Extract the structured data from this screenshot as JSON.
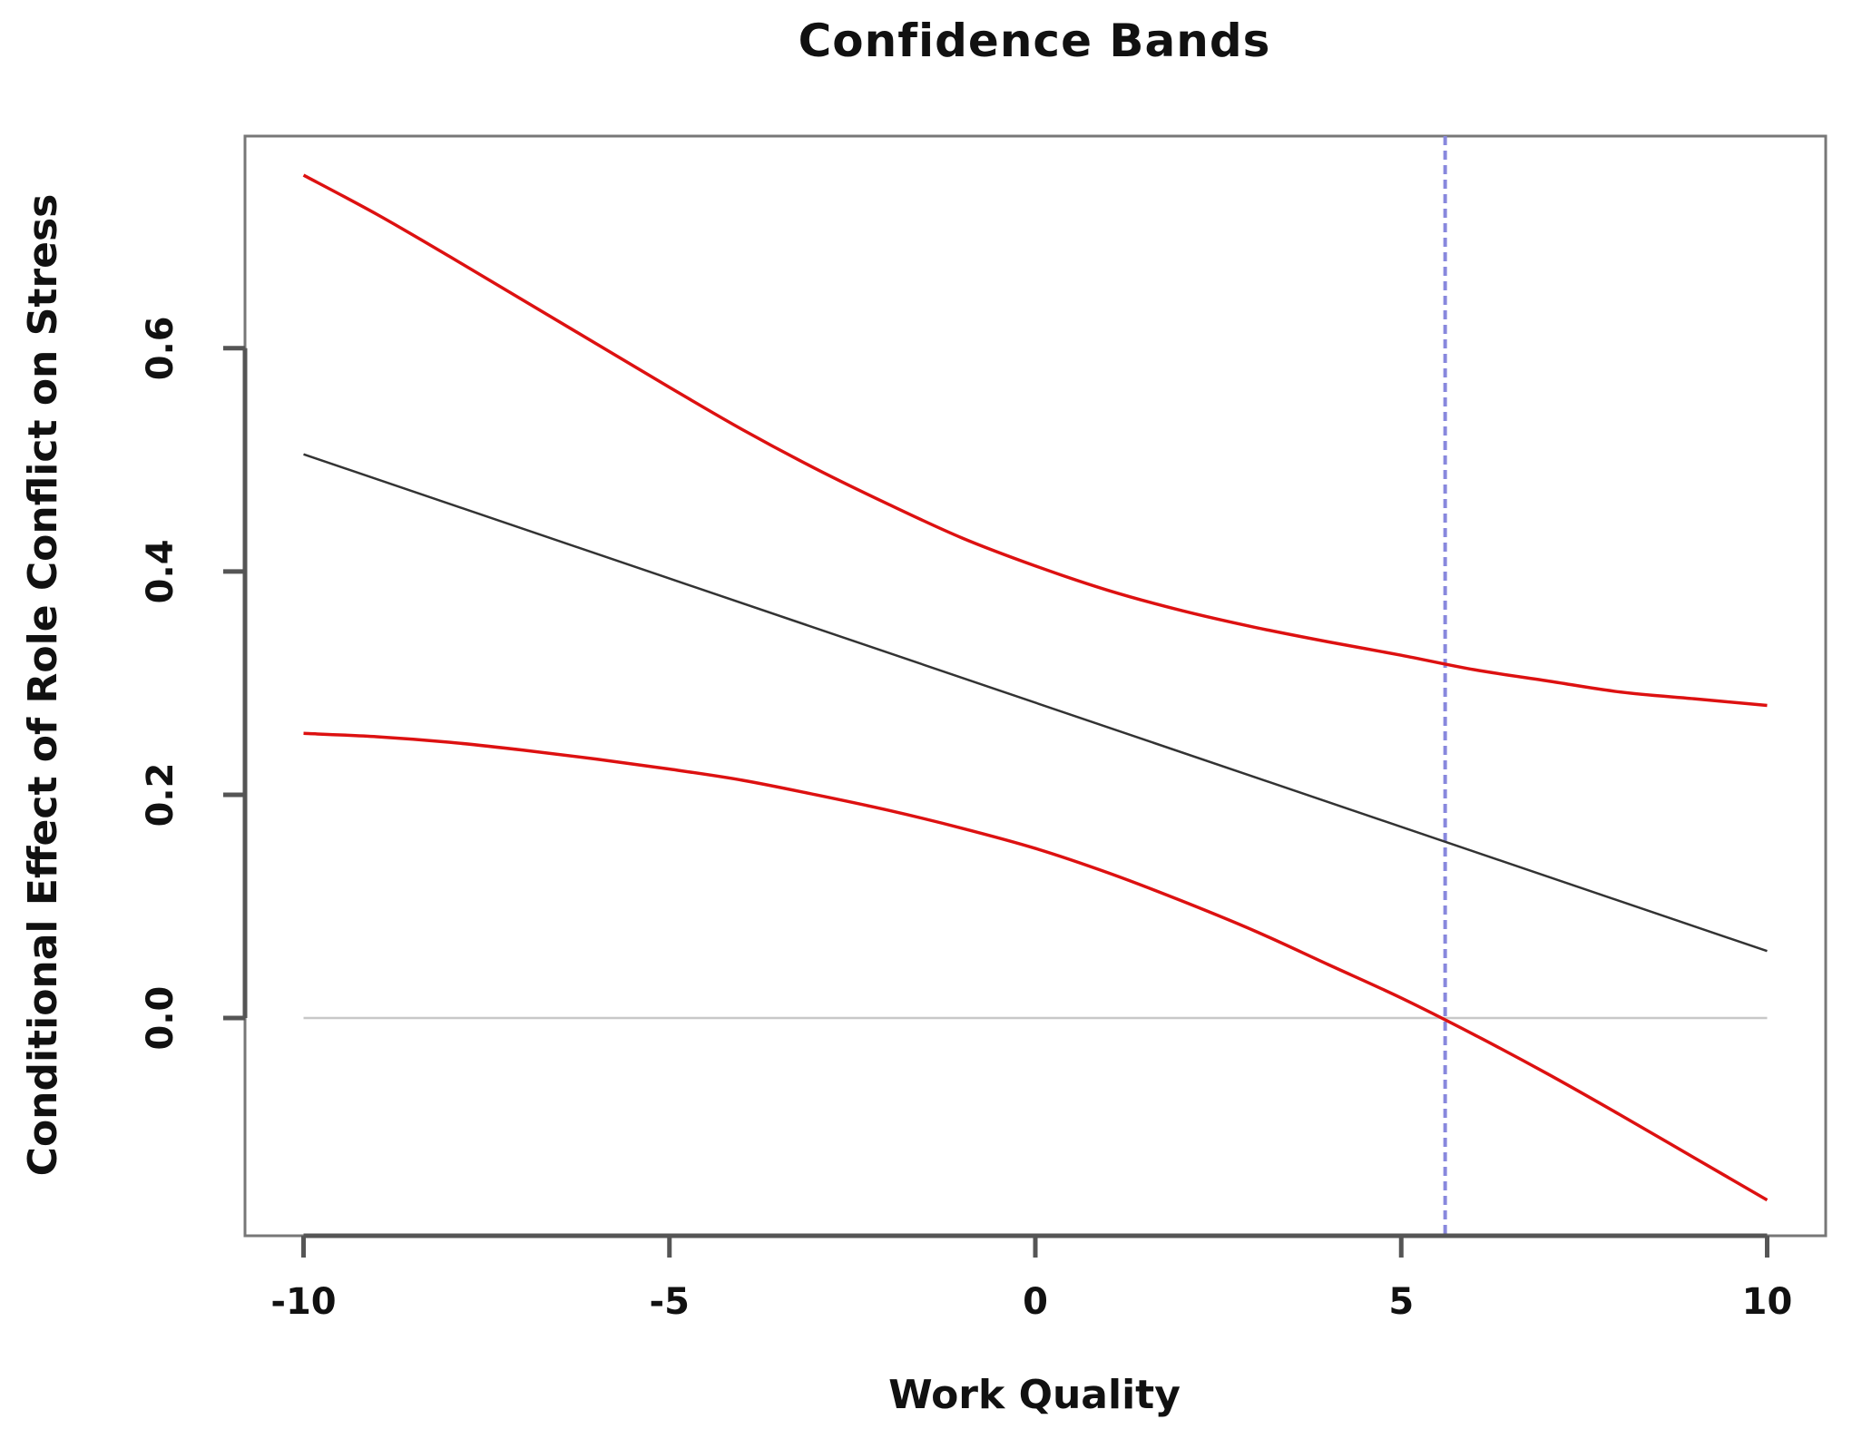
{
  "chart_data": {
    "type": "line",
    "title": "Confidence Bands",
    "xlabel": "Work Quality",
    "ylabel": "Conditional Effect of Role Conflict on Stress",
    "xlim": [
      -10.8,
      10.8
    ],
    "ylim": [
      -0.195,
      0.79
    ],
    "x_ticks": [
      -10,
      -5,
      0,
      5,
      10
    ],
    "x_tick_labels": [
      "-10",
      "-5",
      "0",
      "5",
      "10"
    ],
    "y_ticks": [
      0.0,
      0.2,
      0.4,
      0.6
    ],
    "y_tick_labels": [
      "0.0",
      "0.2",
      "0.4",
      "0.6"
    ],
    "grid": false,
    "series": [
      {
        "role": "estimate",
        "color": "#333333",
        "x": [
          -10,
          10
        ],
        "y": [
          0.505,
          0.06
        ]
      },
      {
        "role": "upper",
        "color": "#dd1111",
        "x": [
          -10,
          -9,
          -8,
          -7,
          -6,
          -5,
          -4,
          -3,
          -2,
          -1,
          0,
          1,
          2,
          3,
          4,
          5,
          6,
          7,
          8,
          9,
          10
        ],
        "y": [
          0.755,
          0.72,
          0.682,
          0.643,
          0.604,
          0.565,
          0.527,
          0.492,
          0.46,
          0.43,
          0.405,
          0.383,
          0.365,
          0.35,
          0.337,
          0.325,
          0.312,
          0.302,
          0.292,
          0.286,
          0.28
        ]
      },
      {
        "role": "lower",
        "color": "#dd1111",
        "x": [
          -10,
          -9,
          -8,
          -7,
          -6,
          -5,
          -4,
          -3,
          -2,
          -1,
          0,
          1,
          2,
          3,
          4,
          5,
          6,
          7,
          8,
          9,
          10
        ],
        "y": [
          0.255,
          0.252,
          0.247,
          0.24,
          0.232,
          0.223,
          0.213,
          0.2,
          0.186,
          0.17,
          0.152,
          0.13,
          0.105,
          0.078,
          0.048,
          0.018,
          -0.015,
          -0.05,
          -0.087,
          -0.125,
          -0.163
        ]
      }
    ],
    "reference_lines": [
      {
        "orientation": "horizontal",
        "value": 0.0,
        "color": "#c8c8c8",
        "style": "solid",
        "x_range": [
          -10,
          10
        ]
      },
      {
        "orientation": "vertical",
        "value": 5.6,
        "color": "#8888dd",
        "style": "dashed"
      }
    ]
  }
}
